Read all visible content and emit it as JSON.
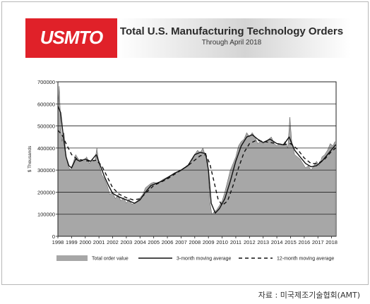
{
  "header": {
    "logo_text": "USMTO",
    "title": "Total U.S. Manufacturing Technology Orders",
    "subtitle": "Through April 2018"
  },
  "source_note": "자료 : 미국제조기술협회(AMT)",
  "colors": {
    "logo_red": "#e02129",
    "banner_gray": "#d0d0d0",
    "area_fill": "#a7a7a7",
    "line": "#111111"
  },
  "chart_data": {
    "type": "area",
    "title": "Total U.S. Manufacturing Technology Orders",
    "subtitle": "Through April 2018",
    "ylabel": "$ Thousands",
    "xlabel": "",
    "ylim": [
      0,
      700000
    ],
    "xlim": [
      1998,
      2018.33
    ],
    "yticks": [
      0,
      100000,
      200000,
      300000,
      400000,
      500000,
      600000,
      700000
    ],
    "ytick_labels": [
      "0",
      "100000",
      "200000",
      "300000",
      "400000",
      "500000",
      "600000",
      "700000"
    ],
    "xticks": [
      1998,
      1999,
      2000,
      2001,
      2002,
      2003,
      2004,
      2005,
      2006,
      2007,
      2008,
      2009,
      2010,
      2011,
      2012,
      2013,
      2014,
      2015,
      2016,
      2017,
      2018
    ],
    "grid": "horizontal",
    "legend_position": "bottom",
    "legend": [
      "Total order value",
      "3-month moving average",
      "12-month moving average"
    ],
    "series": [
      {
        "name": "Total order value",
        "style": "gray area",
        "x": [
          1998,
          1998.1,
          1998.2,
          1998.3,
          1998.45,
          1998.6,
          1998.75,
          1998.9,
          1999.1,
          1999.3,
          1999.5,
          1999.7,
          1999.9,
          2000.1,
          2000.3,
          2000.5,
          2000.7,
          2000.85,
          2001.0,
          2001.2,
          2001.4,
          2001.6,
          2001.8,
          2002.0,
          2002.2,
          2002.4,
          2002.6,
          2002.8,
          2003.0,
          2003.2,
          2003.4,
          2003.6,
          2003.8,
          2004.0,
          2004.2,
          2004.4,
          2004.6,
          2004.8,
          2005.0,
          2005.3,
          2005.6,
          2005.9,
          2006.2,
          2006.5,
          2006.8,
          2007.1,
          2007.4,
          2007.7,
          2008.0,
          2008.2,
          2008.4,
          2008.6,
          2008.8,
          2008.95,
          2009.1,
          2009.25,
          2009.4,
          2009.6,
          2009.8,
          2010.0,
          2010.2,
          2010.4,
          2010.6,
          2010.8,
          2011.0,
          2011.2,
          2011.4,
          2011.6,
          2011.8,
          2012.0,
          2012.2,
          2012.4,
          2012.6,
          2012.8,
          2013.0,
          2013.2,
          2013.4,
          2013.6,
          2013.8,
          2014.0,
          2014.2,
          2014.4,
          2014.6,
          2014.8,
          2014.95,
          2015.1,
          2015.3,
          2015.5,
          2015.7,
          2015.9,
          2016.1,
          2016.3,
          2016.5,
          2016.7,
          2016.9,
          2017.1,
          2017.3,
          2017.5,
          2017.7,
          2017.9,
          2018.1,
          2018.25
        ],
        "values": [
          590000,
          680000,
          520000,
          430000,
          470000,
          360000,
          320000,
          300000,
          330000,
          370000,
          350000,
          340000,
          340000,
          360000,
          330000,
          350000,
          340000,
          400000,
          330000,
          280000,
          260000,
          230000,
          190000,
          200000,
          170000,
          190000,
          160000,
          175000,
          150000,
          170000,
          145000,
          150000,
          160000,
          175000,
          190000,
          220000,
          230000,
          240000,
          245000,
          240000,
          255000,
          265000,
          275000,
          285000,
          290000,
          300000,
          320000,
          330000,
          370000,
          390000,
          380000,
          400000,
          360000,
          340000,
          160000,
          100000,
          110000,
          120000,
          140000,
          160000,
          200000,
          250000,
          300000,
          330000,
          360000,
          410000,
          430000,
          440000,
          470000,
          450000,
          470000,
          450000,
          420000,
          430000,
          420000,
          430000,
          440000,
          450000,
          420000,
          410000,
          420000,
          410000,
          430000,
          400000,
          540000,
          420000,
          370000,
          360000,
          350000,
          330000,
          310000,
          320000,
          300000,
          320000,
          340000,
          320000,
          360000,
          370000,
          390000,
          420000,
          410000,
          430000
        ]
      },
      {
        "name": "3-month moving average",
        "style": "solid line",
        "x": [
          1998,
          1998.2,
          1998.4,
          1998.6,
          1998.8,
          1999.0,
          1999.3,
          1999.6,
          2000.0,
          2000.4,
          2000.8,
          2001.1,
          2001.4,
          2001.7,
          2002.0,
          2002.4,
          2002.8,
          2003.2,
          2003.6,
          2004.0,
          2004.4,
          2004.8,
          2005.2,
          2005.6,
          2006.0,
          2006.5,
          2007.0,
          2007.5,
          2008.0,
          2008.4,
          2008.8,
          2009.0,
          2009.2,
          2009.5,
          2009.8,
          2010.2,
          2010.6,
          2011.0,
          2011.4,
          2011.8,
          2012.2,
          2012.6,
          2013.0,
          2013.5,
          2014.0,
          2014.5,
          2014.9,
          2015.3,
          2015.7,
          2016.1,
          2016.5,
          2016.9,
          2017.3,
          2017.7,
          2018.1,
          2018.3
        ],
        "values": [
          590000,
          560000,
          450000,
          360000,
          320000,
          310000,
          350000,
          340000,
          350000,
          340000,
          370000,
          320000,
          270000,
          230000,
          195000,
          180000,
          170000,
          160000,
          150000,
          165000,
          200000,
          230000,
          240000,
          250000,
          265000,
          285000,
          300000,
          320000,
          370000,
          380000,
          375000,
          300000,
          150000,
          105000,
          125000,
          170000,
          250000,
          340000,
          410000,
          450000,
          460000,
          440000,
          425000,
          440000,
          420000,
          415000,
          450000,
          390000,
          360000,
          330000,
          315000,
          320000,
          340000,
          370000,
          400000,
          415000
        ]
      },
      {
        "name": "12-month moving average",
        "style": "dashed line",
        "x": [
          1998,
          1998.3,
          1998.6,
          1999.0,
          1999.4,
          1999.8,
          2000.3,
          2000.8,
          2001.2,
          2001.6,
          2002.0,
          2002.5,
          2003.0,
          2003.5,
          2004.0,
          2004.5,
          2005.0,
          2005.5,
          2006.0,
          2006.5,
          2007.0,
          2007.5,
          2008.0,
          2008.4,
          2008.8,
          2009.1,
          2009.4,
          2009.7,
          2010.0,
          2010.4,
          2010.8,
          2011.2,
          2011.6,
          2012.0,
          2012.5,
          2013.0,
          2013.5,
          2014.0,
          2014.5,
          2015.0,
          2015.5,
          2016.0,
          2016.5,
          2017.0,
          2017.5,
          2018.0,
          2018.3
        ],
        "values": [
          480000,
          460000,
          420000,
          370000,
          350000,
          345000,
          340000,
          345000,
          320000,
          270000,
          220000,
          190000,
          175000,
          165000,
          170000,
          200000,
          230000,
          245000,
          260000,
          280000,
          300000,
          320000,
          345000,
          365000,
          370000,
          330000,
          250000,
          170000,
          140000,
          160000,
          230000,
          310000,
          380000,
          420000,
          435000,
          430000,
          425000,
          420000,
          415000,
          420000,
          395000,
          355000,
          330000,
          330000,
          350000,
          385000,
          400000
        ]
      }
    ]
  }
}
